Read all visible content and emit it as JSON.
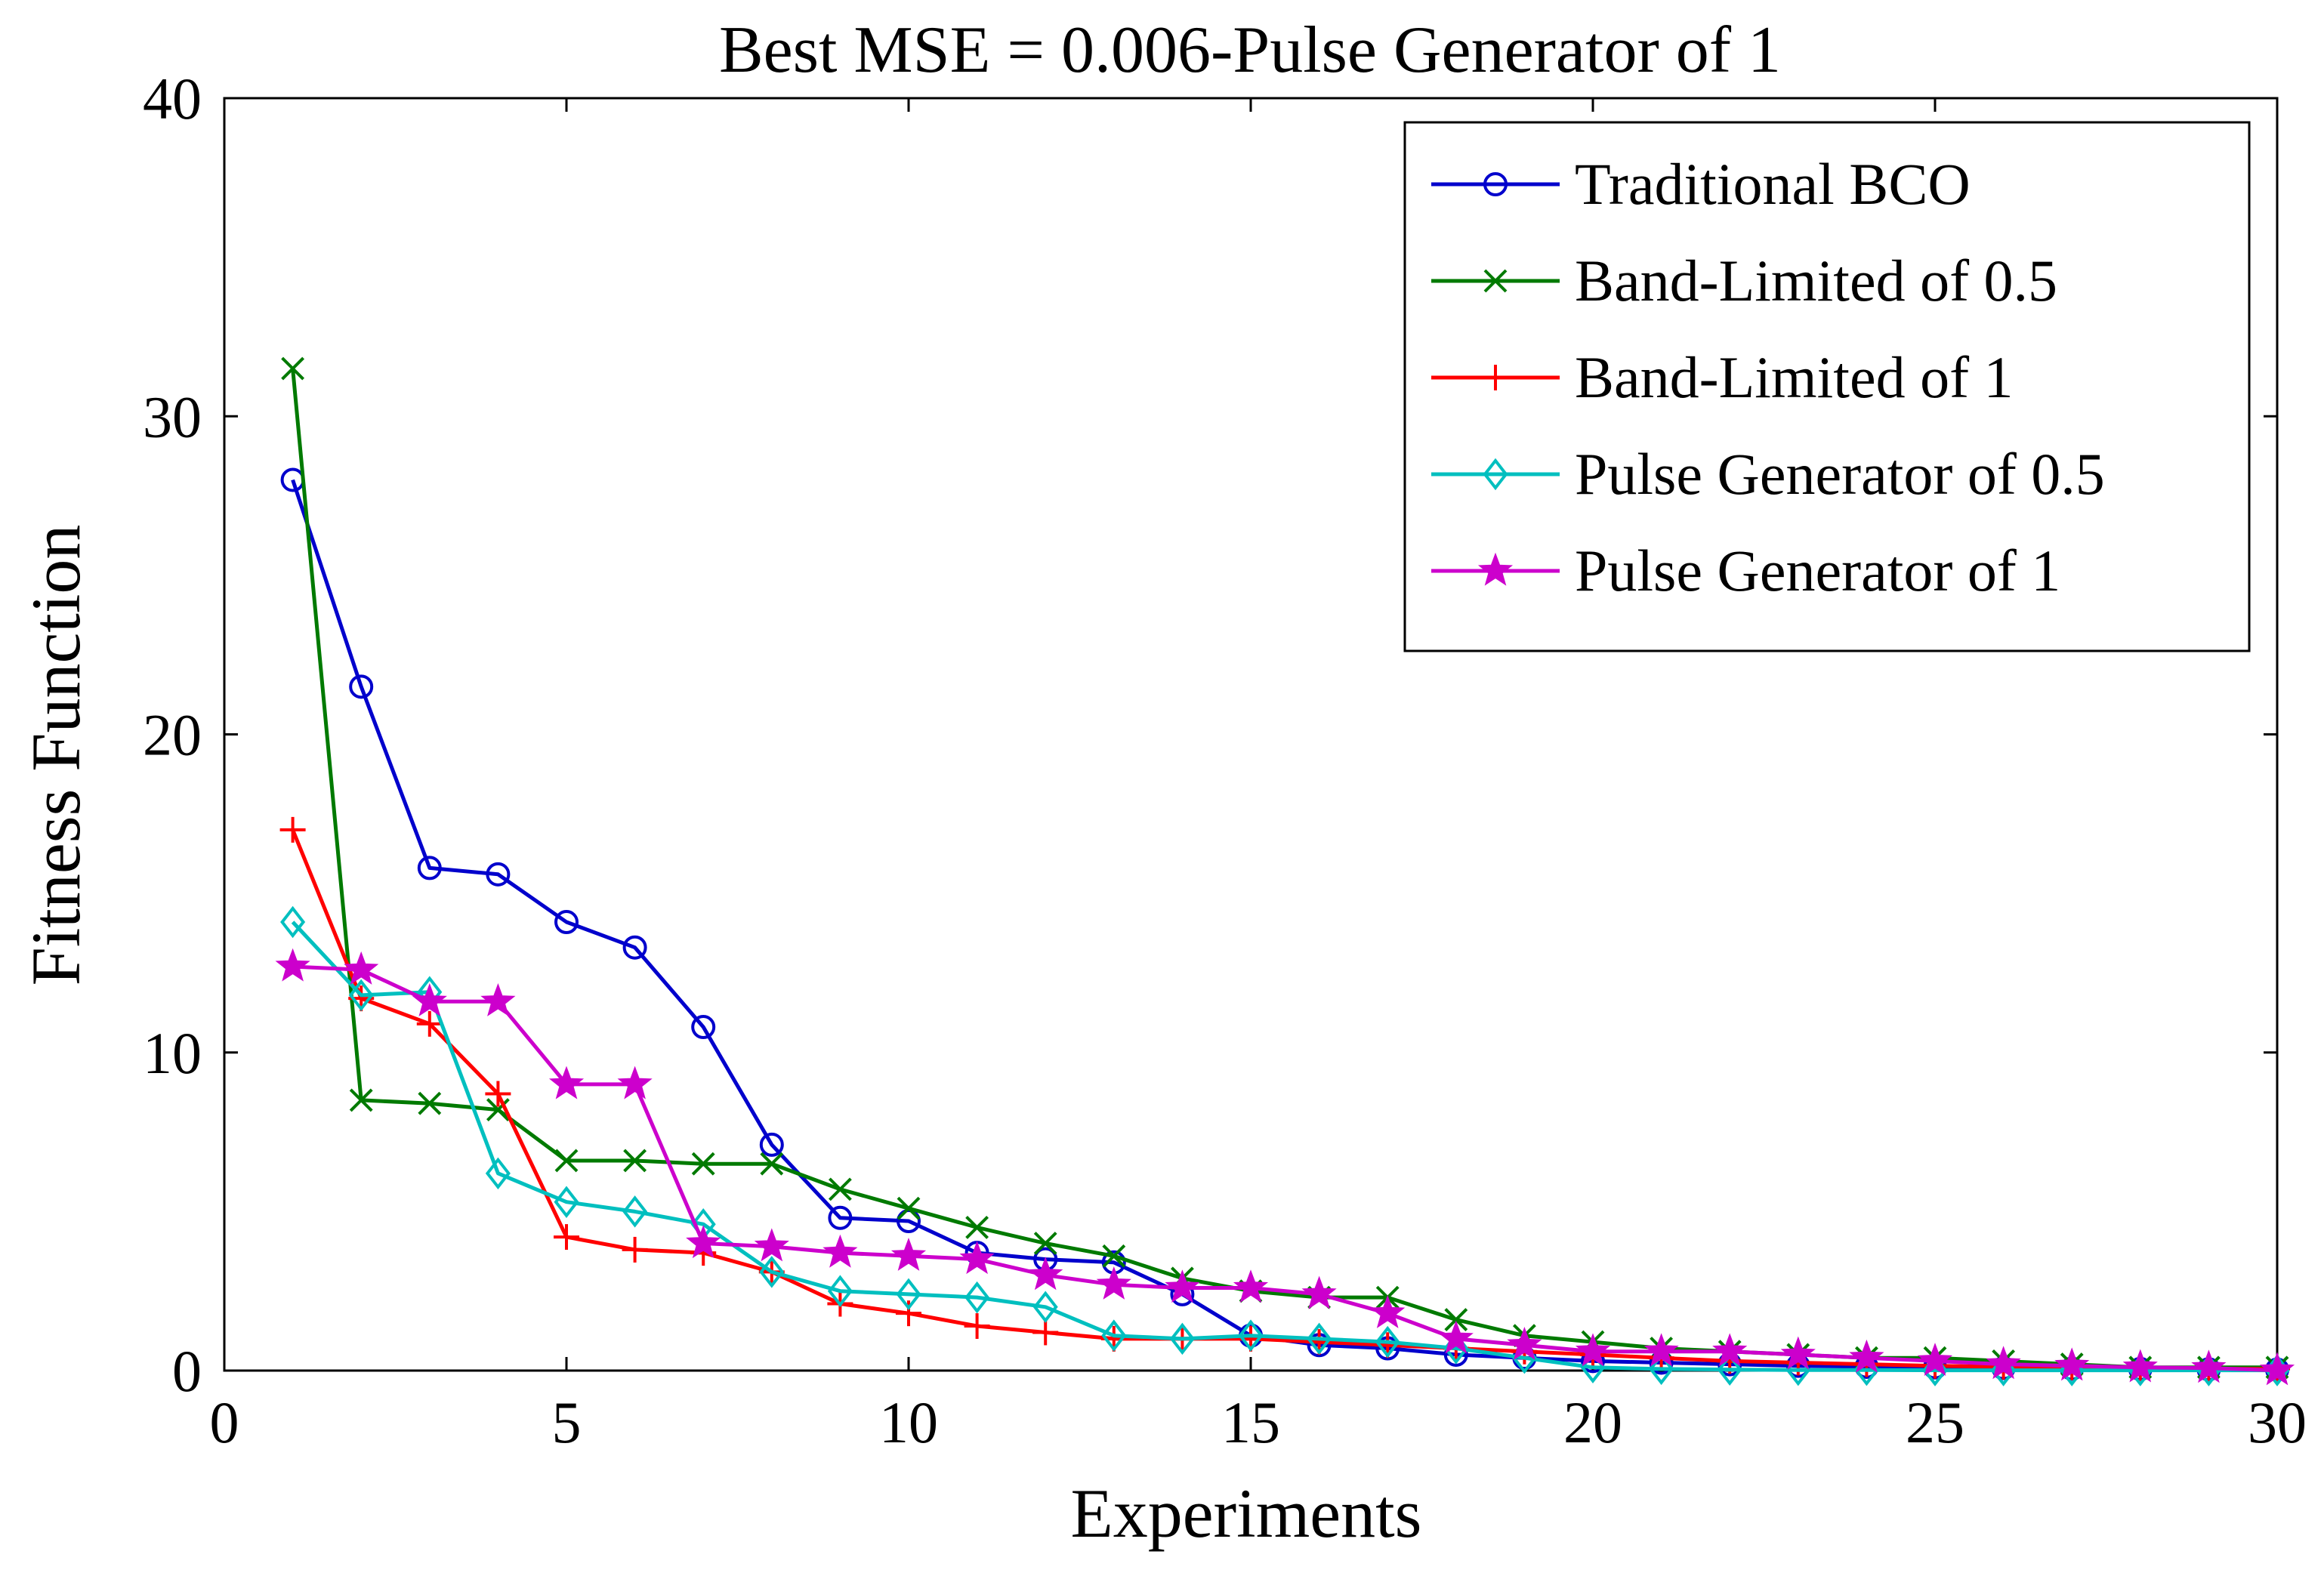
{
  "chart_data": {
    "type": "line",
    "title": "Best MSE = 0.006-Pulse Generator of 1",
    "xlabel": "Experiments",
    "ylabel": "Fitness Function",
    "xlim": [
      0,
      30
    ],
    "ylim": [
      0,
      40
    ],
    "xticks": [
      0,
      5,
      10,
      15,
      20,
      25,
      30
    ],
    "yticks": [
      0,
      10,
      20,
      30,
      40
    ],
    "legend_position": "top-right",
    "x": [
      1,
      2,
      3,
      4,
      5,
      6,
      7,
      8,
      9,
      10,
      11,
      12,
      13,
      14,
      15,
      16,
      17,
      18,
      19,
      20,
      21,
      22,
      23,
      24,
      25,
      26,
      27,
      28,
      29,
      30
    ],
    "series": [
      {
        "name": "Traditional BCO",
        "color": "#0000cc",
        "marker": "circle",
        "values": [
          28.0,
          21.5,
          15.8,
          15.6,
          14.1,
          13.3,
          10.8,
          7.1,
          4.8,
          4.7,
          3.7,
          3.5,
          3.4,
          2.4,
          1.1,
          0.8,
          0.7,
          0.5,
          0.4,
          0.3,
          0.25,
          0.2,
          0.15,
          0.12,
          0.1,
          0.08,
          0.06,
          0.05,
          0.04,
          0.03
        ]
      },
      {
        "name": "Band-Limited of 0.5",
        "color": "#007a00",
        "marker": "x",
        "values": [
          31.5,
          8.5,
          8.4,
          8.2,
          6.6,
          6.6,
          6.5,
          6.5,
          5.7,
          5.1,
          4.5,
          4.0,
          3.6,
          2.9,
          2.5,
          2.3,
          2.3,
          1.6,
          1.1,
          0.9,
          0.7,
          0.6,
          0.5,
          0.4,
          0.4,
          0.3,
          0.2,
          0.1,
          0.1,
          0.1
        ]
      },
      {
        "name": "Band-Limited of 1",
        "color": "#ff0000",
        "marker": "plus",
        "values": [
          17.0,
          11.7,
          10.9,
          8.7,
          4.2,
          3.8,
          3.7,
          3.1,
          2.1,
          1.8,
          1.4,
          1.2,
          1.0,
          1.0,
          1.0,
          0.9,
          0.8,
          0.7,
          0.6,
          0.5,
          0.4,
          0.3,
          0.25,
          0.2,
          0.15,
          0.12,
          0.1,
          0.08,
          0.06,
          0.05
        ]
      },
      {
        "name": "Pulse Generator of 0.5",
        "color": "#00bfbf",
        "marker": "diamond",
        "values": [
          14.1,
          11.8,
          11.9,
          6.2,
          5.3,
          5.0,
          4.6,
          3.1,
          2.5,
          2.4,
          2.3,
          2.0,
          1.1,
          1.0,
          1.1,
          1.0,
          0.9,
          0.7,
          0.4,
          0.1,
          0.05,
          0.03,
          0.02,
          0.02,
          0.01,
          0.01,
          0.01,
          0.01,
          0.01,
          0.01
        ]
      },
      {
        "name": "Pulse Generator of 1",
        "color": "#cc00cc",
        "marker": "star",
        "values": [
          12.7,
          12.6,
          11.6,
          11.6,
          9.0,
          9.0,
          4.0,
          3.9,
          3.7,
          3.6,
          3.5,
          3.0,
          2.7,
          2.6,
          2.6,
          2.4,
          1.8,
          1.0,
          0.8,
          0.6,
          0.6,
          0.6,
          0.5,
          0.4,
          0.3,
          0.2,
          0.15,
          0.1,
          0.08,
          0.006
        ]
      }
    ]
  }
}
